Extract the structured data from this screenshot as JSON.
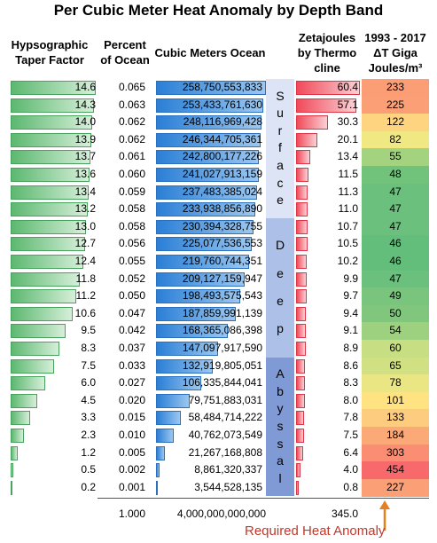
{
  "title": "Per Cubic Meter Heat Anomaly by Depth Band",
  "headers": {
    "taper": "Hypsographic Taper Factor",
    "percent": "Percent of Ocean",
    "cubic": "Cubic Meters Ocean",
    "zj": "Zetajoules by Thermo cline",
    "giga": "1993 - 2017 ΔT Giga Joules/m³"
  },
  "rows": [
    {
      "taper": "14.6",
      "percent": "0.065",
      "cubic": "258,750,553,833",
      "zj": "60.4",
      "giga": "233"
    },
    {
      "taper": "14.3",
      "percent": "0.063",
      "cubic": "253,433,761,630",
      "zj": "57.1",
      "giga": "225"
    },
    {
      "taper": "14.0",
      "percent": "0.062",
      "cubic": "248,116,969,428",
      "zj": "30.3",
      "giga": "122"
    },
    {
      "taper": "13.9",
      "percent": "0.062",
      "cubic": "246,344,705,361",
      "zj": "20.1",
      "giga": "82"
    },
    {
      "taper": "13.7",
      "percent": "0.061",
      "cubic": "242,800,177,226",
      "zj": "13.4",
      "giga": "55"
    },
    {
      "taper": "13.6",
      "percent": "0.060",
      "cubic": "241,027,913,159",
      "zj": "11.5",
      "giga": "48"
    },
    {
      "taper": "13.4",
      "percent": "0.059",
      "cubic": "237,483,385,024",
      "zj": "11.3",
      "giga": "47"
    },
    {
      "taper": "13.2",
      "percent": "0.058",
      "cubic": "233,938,856,890",
      "zj": "11.0",
      "giga": "47"
    },
    {
      "taper": "13.0",
      "percent": "0.058",
      "cubic": "230,394,328,755",
      "zj": "10.7",
      "giga": "47"
    },
    {
      "taper": "12.7",
      "percent": "0.056",
      "cubic": "225,077,536,553",
      "zj": "10.5",
      "giga": "46"
    },
    {
      "taper": "12.4",
      "percent": "0.055",
      "cubic": "219,760,744,351",
      "zj": "10.2",
      "giga": "46"
    },
    {
      "taper": "11.8",
      "percent": "0.052",
      "cubic": "209,127,159,947",
      "zj": "9.9",
      "giga": "47"
    },
    {
      "taper": "11.2",
      "percent": "0.050",
      "cubic": "198,493,575,543",
      "zj": "9.7",
      "giga": "49"
    },
    {
      "taper": "10.6",
      "percent": "0.047",
      "cubic": "187,859,991,139",
      "zj": "9.4",
      "giga": "50"
    },
    {
      "taper": "9.5",
      "percent": "0.042",
      "cubic": "168,365,086,398",
      "zj": "9.1",
      "giga": "54"
    },
    {
      "taper": "8.3",
      "percent": "0.037",
      "cubic": "147,097,917,590",
      "zj": "8.9",
      "giga": "60"
    },
    {
      "taper": "7.5",
      "percent": "0.033",
      "cubic": "132,919,805,051",
      "zj": "8.6",
      "giga": "65"
    },
    {
      "taper": "6.0",
      "percent": "0.027",
      "cubic": "106,335,844,041",
      "zj": "8.3",
      "giga": "78"
    },
    {
      "taper": "4.5",
      "percent": "0.020",
      "cubic": "79,751,883,031",
      "zj": "8.0",
      "giga": "101"
    },
    {
      "taper": "3.3",
      "percent": "0.015",
      "cubic": "58,484,714,222",
      "zj": "7.8",
      "giga": "133"
    },
    {
      "taper": "2.3",
      "percent": "0.010",
      "cubic": "40,762,073,549",
      "zj": "7.5",
      "giga": "184"
    },
    {
      "taper": "1.2",
      "percent": "0.005",
      "cubic": "21,267,168,808",
      "zj": "6.4",
      "giga": "303"
    },
    {
      "taper": "0.5",
      "percent": "0.002",
      "cubic": "8,861,320,337",
      "zj": "4.0",
      "giga": "454"
    },
    {
      "taper": "0.2",
      "percent": "0.001",
      "cubic": "3,544,528,135",
      "zj": "0.8",
      "giga": "227"
    }
  ],
  "bands": [
    {
      "letters": [
        "S",
        "u",
        "r",
        "f",
        "a",
        "c",
        "e"
      ],
      "color": "#dce4f5"
    },
    {
      "letters": [
        "D",
        "e",
        "e",
        "p"
      ],
      "color": "#adc1e8"
    },
    {
      "letters": [
        "A",
        "b",
        "y",
        "s",
        "s",
        "a",
        "l"
      ],
      "color": "#7f9ad4"
    }
  ],
  "totals": {
    "percent": "1.000",
    "cubic": "4,000,000,000,000",
    "zj": "345.0"
  },
  "note": "Required Heat Anomaly",
  "chart_data": {
    "type": "table",
    "title": "Per Cubic Meter Heat Anomaly by Depth Band",
    "columns": [
      "Hypsographic Taper Factor",
      "Percent of Ocean",
      "Cubic Meters Ocean",
      "Zetajoules by Thermo cline",
      "1993 - 2017 ΔT Giga Joules/m³"
    ],
    "taper": [
      14.6,
      14.3,
      14.0,
      13.9,
      13.7,
      13.6,
      13.4,
      13.2,
      13.0,
      12.7,
      12.4,
      11.8,
      11.2,
      10.6,
      9.5,
      8.3,
      7.5,
      6.0,
      4.5,
      3.3,
      2.3,
      1.2,
      0.5,
      0.2
    ],
    "percent": [
      0.065,
      0.063,
      0.062,
      0.062,
      0.061,
      0.06,
      0.059,
      0.058,
      0.058,
      0.056,
      0.055,
      0.052,
      0.05,
      0.047,
      0.042,
      0.037,
      0.033,
      0.027,
      0.02,
      0.015,
      0.01,
      0.005,
      0.002,
      0.001
    ],
    "cubic_meters": [
      258750553833,
      253433761630,
      248116969428,
      246344705361,
      242800177226,
      241027913159,
      237483385024,
      233938856890,
      230394328755,
      225077536553,
      219760744351,
      209127159947,
      198493575543,
      187859991139,
      168365086398,
      147097917590,
      132919805051,
      106335844041,
      79751883031,
      58484714222,
      40762073549,
      21267168808,
      8861320337,
      3544528135
    ],
    "zetajoules": [
      60.4,
      57.1,
      30.3,
      20.1,
      13.4,
      11.5,
      11.3,
      11.0,
      10.7,
      10.5,
      10.2,
      9.9,
      9.7,
      9.4,
      9.1,
      8.9,
      8.6,
      8.3,
      8.0,
      7.8,
      7.5,
      6.4,
      4.0,
      0.8
    ],
    "gigajoules_per_m3": [
      233,
      225,
      122,
      82,
      55,
      48,
      47,
      47,
      47,
      46,
      46,
      47,
      49,
      50,
      54,
      60,
      65,
      78,
      101,
      133,
      184,
      303,
      454,
      227
    ],
    "bands": {
      "Surface": [
        0,
        7
      ],
      "Deep": [
        8,
        15
      ],
      "Abyssal": [
        16,
        23
      ]
    }
  }
}
